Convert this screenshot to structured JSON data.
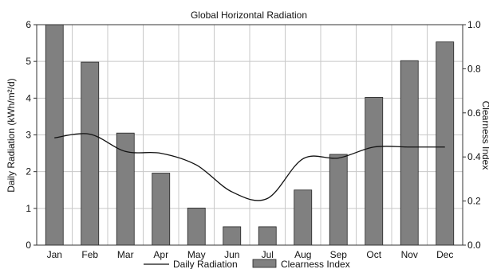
{
  "chart_data": {
    "type": "bar",
    "title": "Global Horizontal Radiation",
    "categories": [
      "Jan",
      "Feb",
      "Mar",
      "Apr",
      "May",
      "Jun",
      "Jul",
      "Aug",
      "Sep",
      "Oct",
      "Nov",
      "Dec"
    ],
    "xlabel": "",
    "ylabel": "Daily Radiation (kWh/m²/d)",
    "y2label": "Clearness Index",
    "ylim": [
      0,
      6
    ],
    "y2lim": [
      0,
      1.0
    ],
    "yticks": [
      "0",
      "1",
      "2",
      "3",
      "4",
      "5",
      "6"
    ],
    "y2ticks": [
      "0.0",
      "0.2",
      "0.4",
      "0.6",
      "0.8",
      "1.0"
    ],
    "grid": true,
    "legend_position": "bottom",
    "series": [
      {
        "name": "Daily Radiation",
        "kind": "line",
        "axis": "left",
        "values": [
          2.92,
          3.02,
          2.55,
          2.5,
          2.18,
          1.45,
          1.27,
          2.35,
          2.37,
          2.67,
          2.67,
          2.67
        ]
      },
      {
        "name": "Clearness Index",
        "kind": "bar",
        "axis": "left",
        "color": "#808080",
        "values": [
          6.0,
          4.98,
          3.05,
          1.96,
          1.01,
          0.5,
          0.5,
          1.5,
          2.47,
          4.02,
          5.02,
          5.53
        ]
      }
    ]
  }
}
